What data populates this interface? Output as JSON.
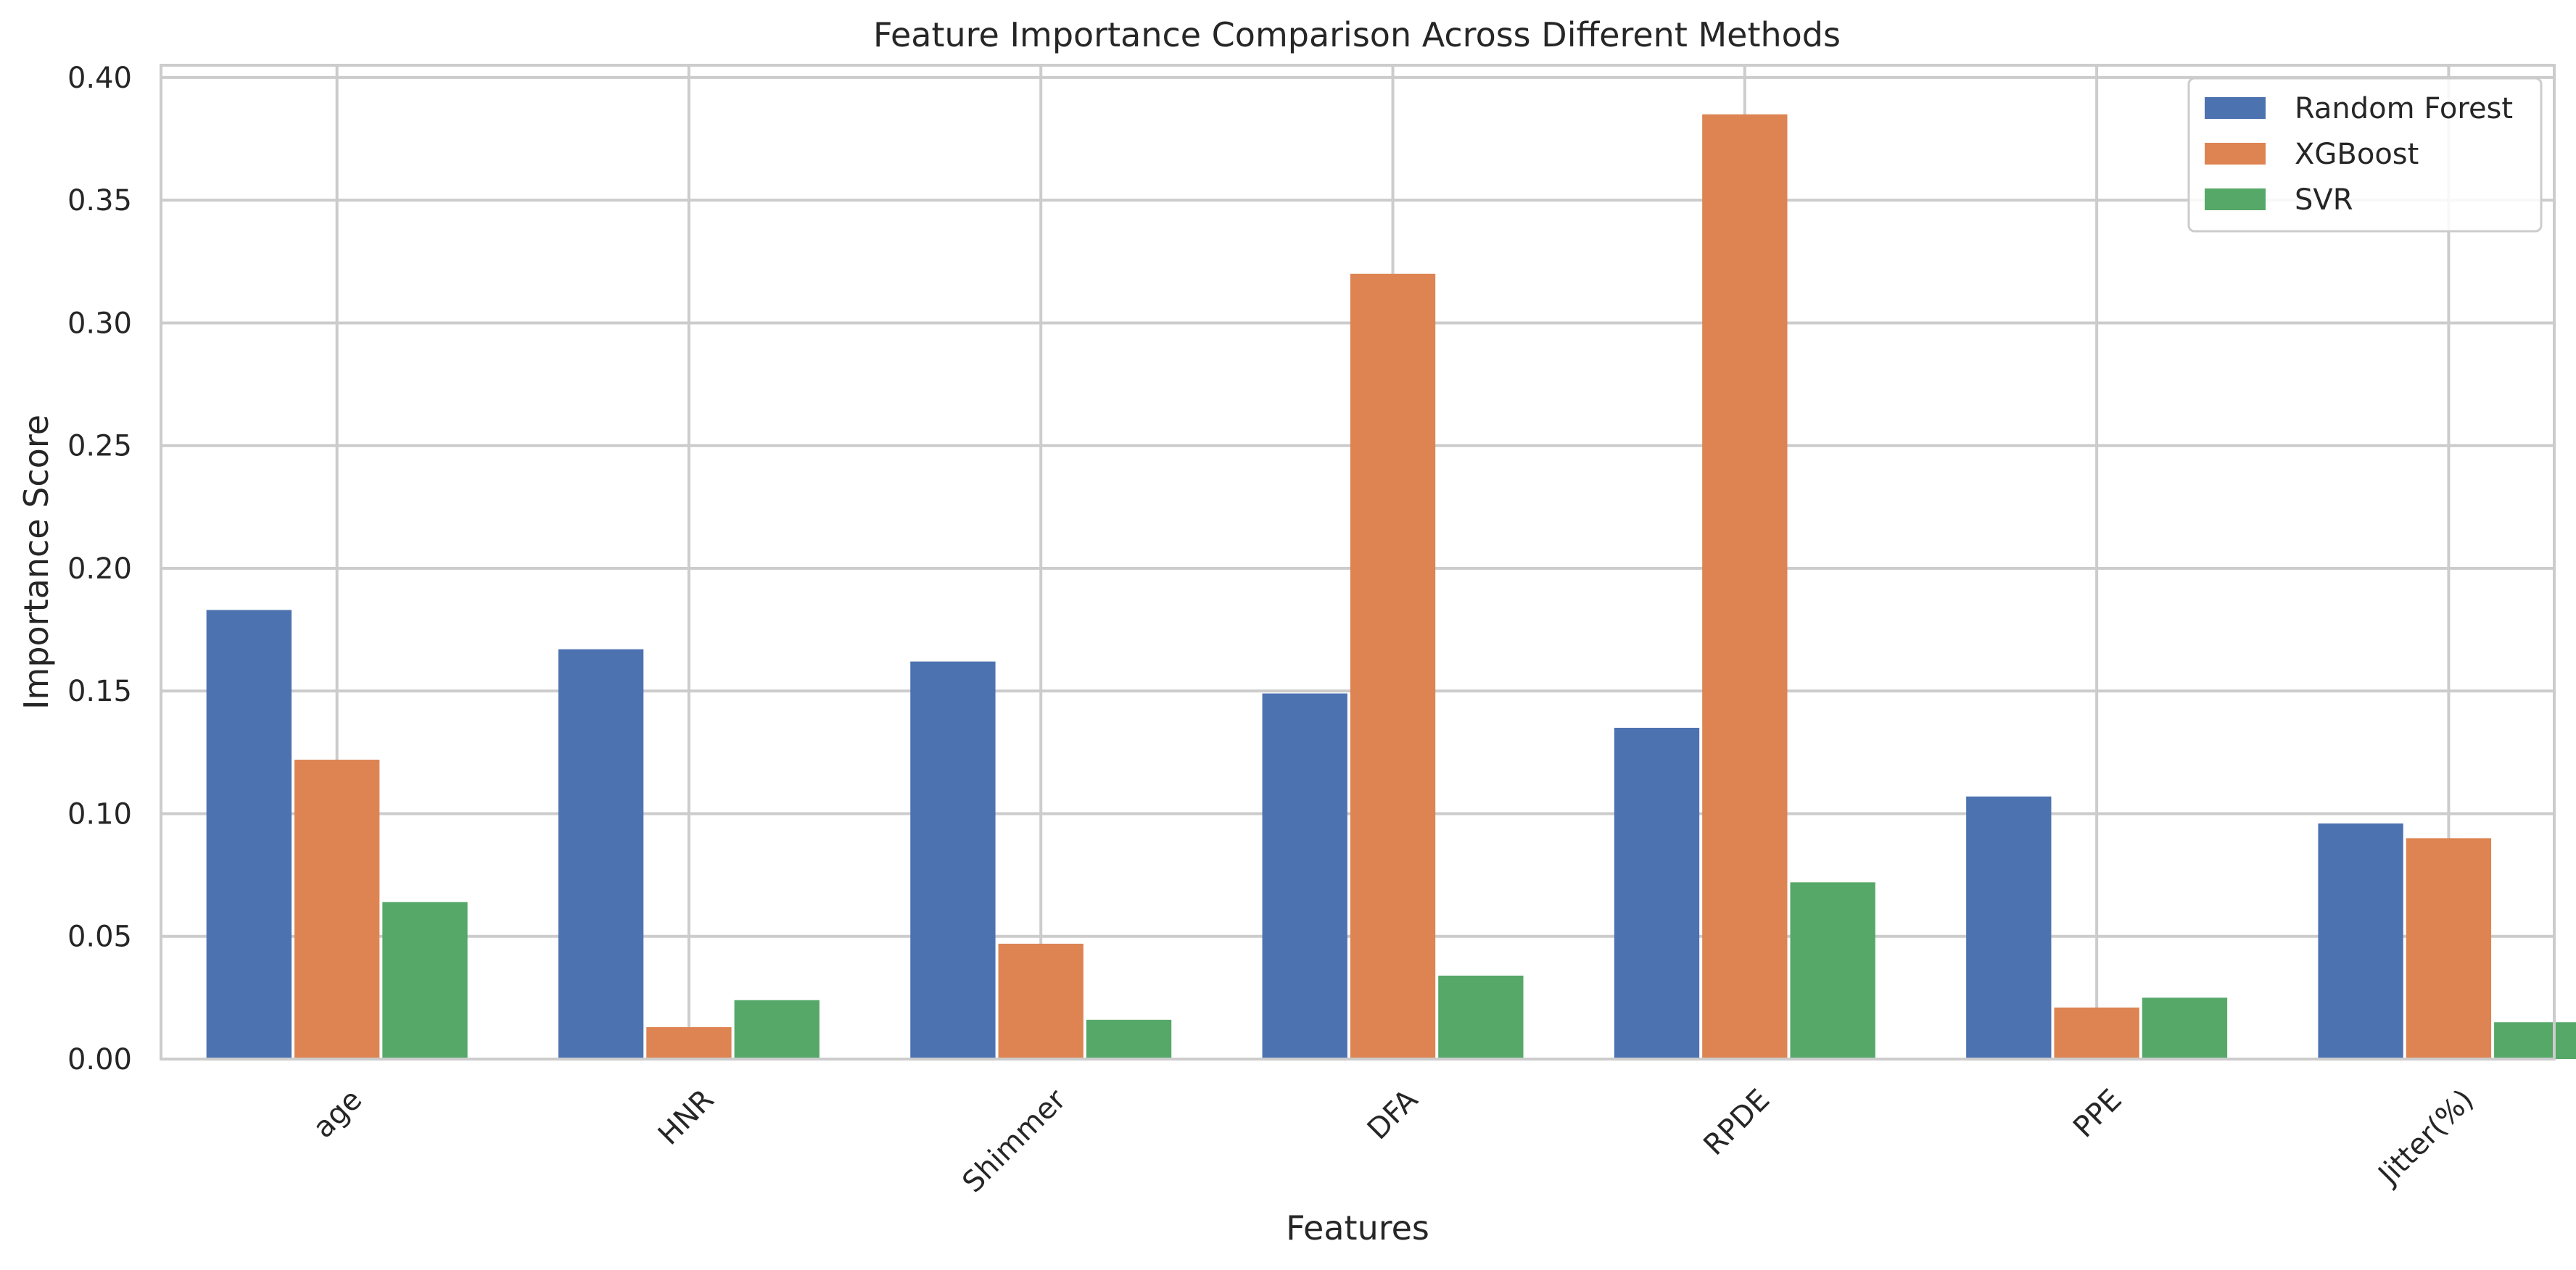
{
  "chart_data": {
    "type": "bar",
    "title": "Feature Importance Comparison Across Different Methods",
    "xlabel": "Features",
    "ylabel": "Importance Score",
    "categories": [
      "age",
      "HNR",
      "Shimmer",
      "DFA",
      "RPDE",
      "PPE",
      "Jitter(%)"
    ],
    "series": [
      {
        "name": "Random Forest",
        "color": "#4c72b0",
        "values": [
          0.183,
          0.167,
          0.162,
          0.149,
          0.135,
          0.107,
          0.096
        ]
      },
      {
        "name": "XGBoost",
        "color": "#dd8452",
        "values": [
          0.122,
          0.013,
          0.047,
          0.32,
          0.385,
          0.021,
          0.09
        ]
      },
      {
        "name": "SVR",
        "color": "#55a868",
        "values": [
          0.064,
          0.024,
          0.016,
          0.034,
          0.072,
          0.025,
          0.015
        ]
      }
    ],
    "ylim": [
      0,
      0.405
    ],
    "yticks": [
      "0.00",
      "0.05",
      "0.10",
      "0.15",
      "0.20",
      "0.25",
      "0.30",
      "0.35",
      "0.40"
    ],
    "grid": true,
    "legend_position": "top-right",
    "xtick_rotation": 45
  }
}
